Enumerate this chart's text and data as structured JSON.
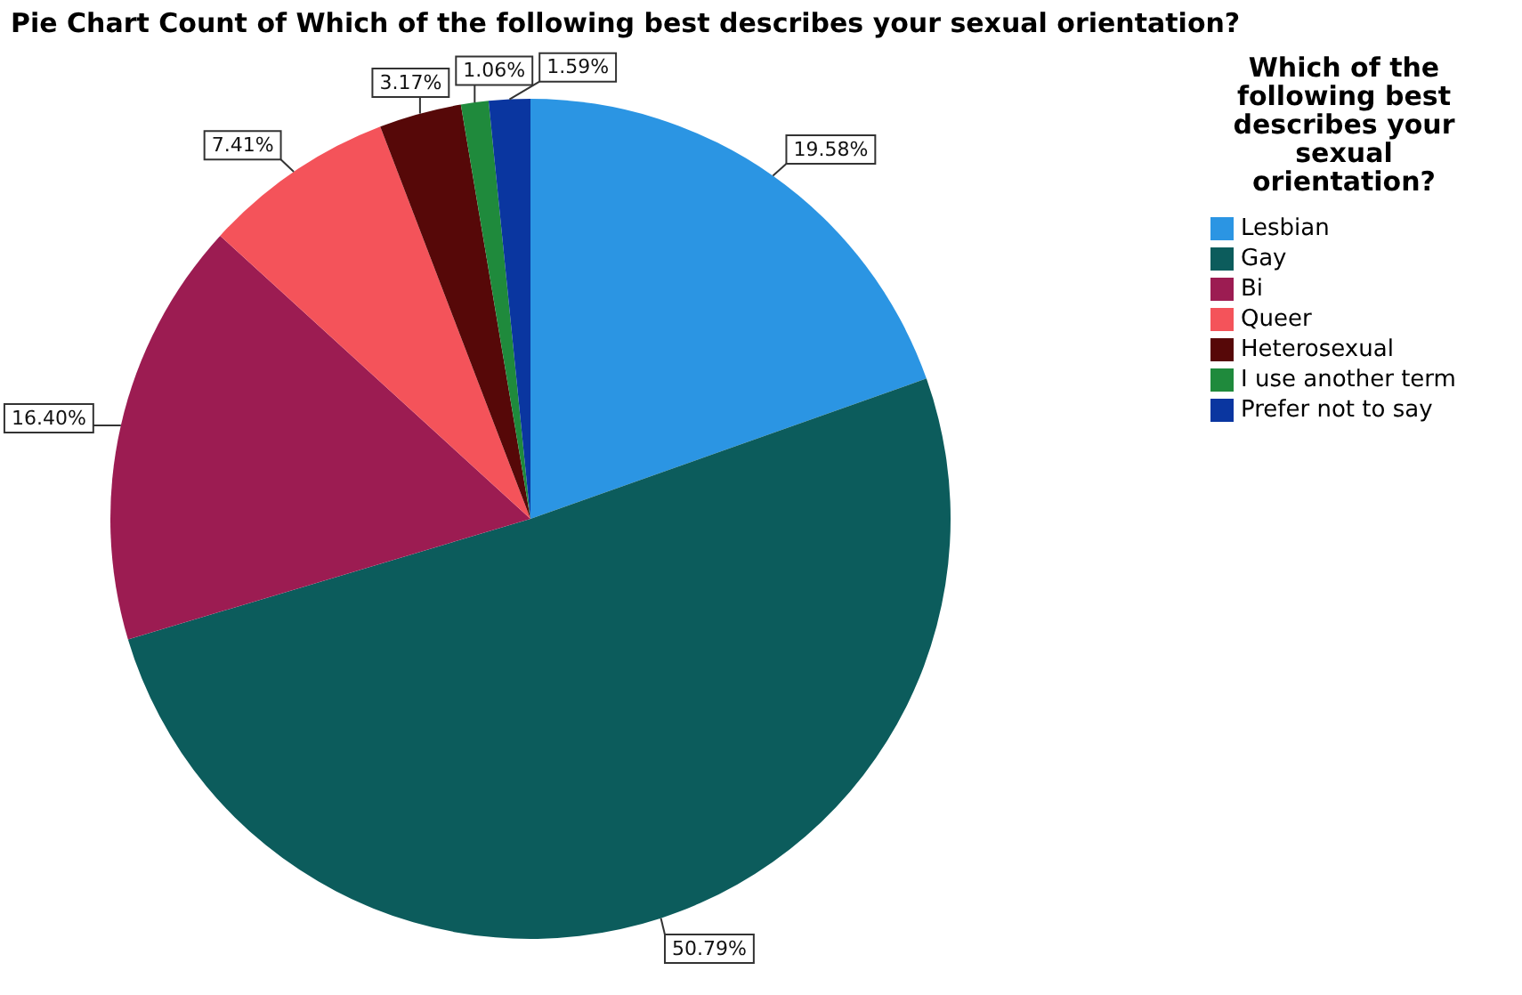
{
  "chart_data": {
    "type": "pie",
    "title": "Pie Chart Count of Which of the following best describes your sexual orientation?",
    "legend_title": "Which of the following best describes your sexual orientation?",
    "legend": "right",
    "categories": [
      "Lesbian",
      "Gay",
      "Bi",
      "Queer",
      "Heterosexual",
      "I use another term",
      "Prefer not to say"
    ],
    "values": [
      19.58,
      50.79,
      16.4,
      7.41,
      3.17,
      1.06,
      1.59
    ],
    "colors": [
      "#2b95e3",
      "#0c5c5c",
      "#9c1c52",
      "#f4535a",
      "#560808",
      "#1f8a3c",
      "#0a36a0"
    ],
    "value_labels": [
      "19.58%",
      "50.79%",
      "16.40%",
      "7.41%",
      "3.17%",
      "1.06%",
      "1.59%"
    ]
  }
}
